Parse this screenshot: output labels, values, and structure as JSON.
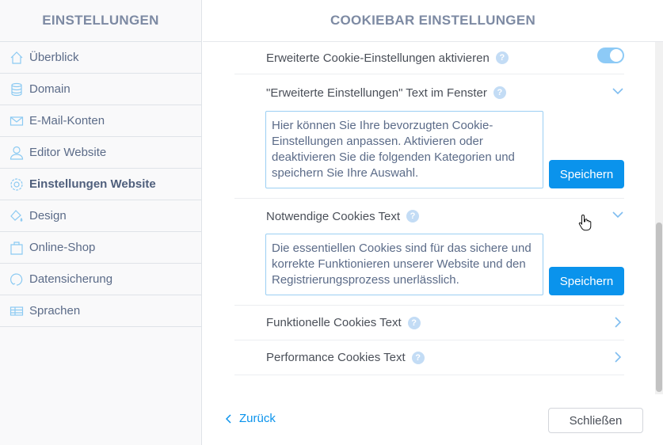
{
  "sidebar": {
    "title": "EINSTELLUNGEN",
    "items": [
      {
        "label": "Überblick",
        "icon": "home-icon"
      },
      {
        "label": "Domain",
        "icon": "database-icon"
      },
      {
        "label": "E-Mail-Konten",
        "icon": "mail-icon"
      },
      {
        "label": "Editor Website",
        "icon": "user-icon"
      },
      {
        "label": "Einstellungen Website",
        "icon": "gear-icon",
        "active": true
      },
      {
        "label": "Design",
        "icon": "paint-bucket-icon"
      },
      {
        "label": "Online-Shop",
        "icon": "shopping-bag-icon"
      },
      {
        "label": "Datensicherung",
        "icon": "refresh-icon"
      },
      {
        "label": "Sprachen",
        "icon": "language-table-icon"
      }
    ]
  },
  "main": {
    "title": "COOKIEBAR EINSTELLUNGEN",
    "help": "?",
    "rows": [
      {
        "label": "Erweiterte Cookie-Einstellungen aktivieren",
        "toggle_on": true
      },
      {
        "label": "\"Erweiterte Einstellungen\" Text im Fenster",
        "text": "Hier können Sie Ihre bevorzugten Cookie-Einstellungen anpassen. Aktivieren oder deaktivieren Sie die folgenden Kategorien und speichern Sie Ihre Auswahl.",
        "save": "Speichern"
      },
      {
        "label": "Notwendige Cookies Text",
        "text": "Die essentiellen Cookies sind für das sichere und korrekte Funktionieren unserer Website und den Registrierungsprozess unerlässlich.",
        "save": "Speichern"
      },
      {
        "label": "Funktionelle Cookies Text"
      },
      {
        "label": "Performance Cookies Text"
      }
    ],
    "back": "Zurück",
    "close": "Schließen"
  },
  "colors": {
    "accent": "#0a93ec",
    "toggle": "#8dcaf6"
  }
}
